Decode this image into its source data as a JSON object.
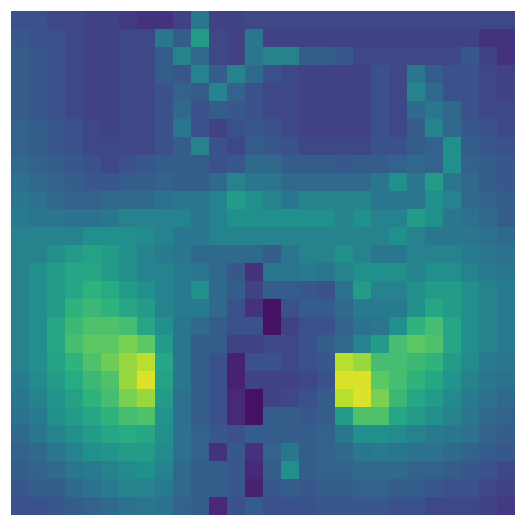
{
  "chart_data": {
    "type": "heatmap",
    "colormap": "viridis",
    "value_range": [
      0,
      1
    ],
    "axes_visible": false,
    "grid": false,
    "colorbar": false,
    "rows": 28,
    "cols": 28,
    "values": [
      [
        0.25,
        0.25,
        0.22,
        0.22,
        0.2,
        0.2,
        0.18,
        0.15,
        0.15,
        0.2,
        0.4,
        0.2,
        0.2,
        0.22,
        0.22,
        0.22,
        0.22,
        0.22,
        0.22,
        0.22,
        0.22,
        0.22,
        0.22,
        0.22,
        0.22,
        0.22,
        0.22,
        0.22
      ],
      [
        0.28,
        0.25,
        0.25,
        0.22,
        0.2,
        0.2,
        0.22,
        0.22,
        0.4,
        0.3,
        0.55,
        0.22,
        0.2,
        0.4,
        0.2,
        0.2,
        0.2,
        0.2,
        0.2,
        0.2,
        0.2,
        0.2,
        0.2,
        0.2,
        0.2,
        0.2,
        0.15,
        0.15
      ],
      [
        0.3,
        0.28,
        0.25,
        0.22,
        0.2,
        0.2,
        0.22,
        0.22,
        0.3,
        0.45,
        0.35,
        0.22,
        0.2,
        0.4,
        0.45,
        0.45,
        0.3,
        0.3,
        0.28,
        0.22,
        0.22,
        0.22,
        0.22,
        0.22,
        0.22,
        0.28,
        0.2,
        0.15
      ],
      [
        0.3,
        0.28,
        0.25,
        0.22,
        0.2,
        0.2,
        0.22,
        0.22,
        0.3,
        0.28,
        0.45,
        0.3,
        0.45,
        0.35,
        0.25,
        0.22,
        0.2,
        0.2,
        0.2,
        0.2,
        0.25,
        0.22,
        0.4,
        0.3,
        0.25,
        0.25,
        0.22,
        0.2
      ],
      [
        0.3,
        0.28,
        0.25,
        0.22,
        0.2,
        0.2,
        0.22,
        0.22,
        0.25,
        0.32,
        0.3,
        0.45,
        0.32,
        0.25,
        0.22,
        0.22,
        0.2,
        0.2,
        0.2,
        0.2,
        0.25,
        0.22,
        0.45,
        0.35,
        0.25,
        0.25,
        0.22,
        0.2
      ],
      [
        0.3,
        0.28,
        0.25,
        0.22,
        0.2,
        0.2,
        0.22,
        0.22,
        0.25,
        0.35,
        0.25,
        0.3,
        0.28,
        0.25,
        0.22,
        0.22,
        0.2,
        0.2,
        0.2,
        0.2,
        0.25,
        0.22,
        0.35,
        0.4,
        0.35,
        0.25,
        0.22,
        0.22
      ],
      [
        0.32,
        0.3,
        0.28,
        0.25,
        0.22,
        0.2,
        0.22,
        0.22,
        0.25,
        0.4,
        0.25,
        0.2,
        0.25,
        0.28,
        0.25,
        0.22,
        0.2,
        0.2,
        0.2,
        0.2,
        0.25,
        0.22,
        0.3,
        0.45,
        0.35,
        0.28,
        0.25,
        0.22
      ],
      [
        0.32,
        0.3,
        0.28,
        0.25,
        0.22,
        0.22,
        0.22,
        0.22,
        0.25,
        0.3,
        0.45,
        0.25,
        0.22,
        0.3,
        0.28,
        0.25,
        0.22,
        0.22,
        0.22,
        0.22,
        0.25,
        0.25,
        0.3,
        0.32,
        0.5,
        0.3,
        0.28,
        0.25
      ],
      [
        0.35,
        0.32,
        0.3,
        0.28,
        0.25,
        0.22,
        0.25,
        0.28,
        0.3,
        0.3,
        0.3,
        0.25,
        0.28,
        0.35,
        0.35,
        0.3,
        0.3,
        0.3,
        0.28,
        0.3,
        0.3,
        0.32,
        0.35,
        0.32,
        0.5,
        0.32,
        0.3,
        0.28
      ],
      [
        0.38,
        0.35,
        0.32,
        0.3,
        0.28,
        0.28,
        0.3,
        0.3,
        0.32,
        0.3,
        0.3,
        0.35,
        0.45,
        0.4,
        0.4,
        0.35,
        0.35,
        0.35,
        0.35,
        0.35,
        0.4,
        0.5,
        0.4,
        0.55,
        0.4,
        0.35,
        0.3,
        0.28
      ],
      [
        0.4,
        0.38,
        0.35,
        0.32,
        0.32,
        0.35,
        0.35,
        0.35,
        0.38,
        0.4,
        0.4,
        0.45,
        0.55,
        0.5,
        0.45,
        0.4,
        0.45,
        0.45,
        0.45,
        0.45,
        0.4,
        0.4,
        0.4,
        0.5,
        0.45,
        0.35,
        0.32,
        0.3
      ],
      [
        0.42,
        0.4,
        0.4,
        0.38,
        0.38,
        0.4,
        0.45,
        0.45,
        0.45,
        0.45,
        0.4,
        0.45,
        0.5,
        0.5,
        0.5,
        0.5,
        0.5,
        0.5,
        0.45,
        0.5,
        0.45,
        0.45,
        0.55,
        0.5,
        0.4,
        0.38,
        0.35,
        0.3
      ],
      [
        0.45,
        0.45,
        0.45,
        0.45,
        0.5,
        0.5,
        0.5,
        0.48,
        0.45,
        0.4,
        0.4,
        0.45,
        0.45,
        0.45,
        0.45,
        0.45,
        0.45,
        0.45,
        0.45,
        0.45,
        0.45,
        0.5,
        0.45,
        0.4,
        0.4,
        0.4,
        0.38,
        0.35
      ],
      [
        0.45,
        0.45,
        0.5,
        0.55,
        0.58,
        0.55,
        0.5,
        0.45,
        0.42,
        0.4,
        0.35,
        0.35,
        0.35,
        0.35,
        0.3,
        0.4,
        0.45,
        0.45,
        0.5,
        0.45,
        0.4,
        0.4,
        0.45,
        0.45,
        0.45,
        0.42,
        0.4,
        0.38
      ],
      [
        0.45,
        0.5,
        0.55,
        0.6,
        0.6,
        0.55,
        0.5,
        0.45,
        0.45,
        0.42,
        0.4,
        0.35,
        0.28,
        0.15,
        0.4,
        0.4,
        0.42,
        0.4,
        0.45,
        0.5,
        0.5,
        0.5,
        0.45,
        0.5,
        0.5,
        0.45,
        0.42,
        0.4
      ],
      [
        0.45,
        0.5,
        0.55,
        0.6,
        0.65,
        0.62,
        0.55,
        0.5,
        0.45,
        0.42,
        0.5,
        0.35,
        0.3,
        0.2,
        0.3,
        0.3,
        0.28,
        0.25,
        0.38,
        0.55,
        0.45,
        0.45,
        0.5,
        0.55,
        0.55,
        0.5,
        0.45,
        0.42
      ],
      [
        0.45,
        0.5,
        0.55,
        0.65,
        0.68,
        0.65,
        0.6,
        0.55,
        0.45,
        0.42,
        0.42,
        0.35,
        0.25,
        0.15,
        0.05,
        0.25,
        0.3,
        0.3,
        0.35,
        0.42,
        0.42,
        0.42,
        0.5,
        0.6,
        0.55,
        0.5,
        0.45,
        0.42
      ],
      [
        0.45,
        0.5,
        0.6,
        0.68,
        0.72,
        0.72,
        0.7,
        0.6,
        0.5,
        0.4,
        0.35,
        0.3,
        0.25,
        0.25,
        0.05,
        0.2,
        0.25,
        0.25,
        0.32,
        0.38,
        0.4,
        0.5,
        0.65,
        0.7,
        0.6,
        0.5,
        0.45,
        0.42
      ],
      [
        0.45,
        0.5,
        0.6,
        0.7,
        0.75,
        0.75,
        0.8,
        0.75,
        0.55,
        0.4,
        0.3,
        0.3,
        0.2,
        0.2,
        0.22,
        0.22,
        0.25,
        0.3,
        0.35,
        0.45,
        0.55,
        0.7,
        0.75,
        0.72,
        0.6,
        0.5,
        0.45,
        0.42
      ],
      [
        0.45,
        0.5,
        0.58,
        0.65,
        0.72,
        0.78,
        0.85,
        0.9,
        0.6,
        0.4,
        0.3,
        0.25,
        0.1,
        0.25,
        0.25,
        0.22,
        0.25,
        0.28,
        0.9,
        0.85,
        0.7,
        0.7,
        0.68,
        0.65,
        0.55,
        0.48,
        0.42,
        0.4
      ],
      [
        0.42,
        0.48,
        0.55,
        0.62,
        0.68,
        0.72,
        0.85,
        0.95,
        0.58,
        0.4,
        0.3,
        0.25,
        0.1,
        0.2,
        0.2,
        0.2,
        0.22,
        0.25,
        0.95,
        0.95,
        0.75,
        0.7,
        0.65,
        0.6,
        0.52,
        0.45,
        0.4,
        0.38
      ],
      [
        0.4,
        0.45,
        0.52,
        0.58,
        0.65,
        0.7,
        0.8,
        0.85,
        0.55,
        0.38,
        0.3,
        0.25,
        0.12,
        0.05,
        0.2,
        0.22,
        0.25,
        0.3,
        0.9,
        0.95,
        0.8,
        0.68,
        0.6,
        0.55,
        0.48,
        0.42,
        0.38,
        0.35
      ],
      [
        0.38,
        0.42,
        0.5,
        0.55,
        0.6,
        0.65,
        0.7,
        0.72,
        0.52,
        0.38,
        0.3,
        0.25,
        0.12,
        0.05,
        0.3,
        0.3,
        0.28,
        0.3,
        0.55,
        0.72,
        0.72,
        0.6,
        0.55,
        0.5,
        0.45,
        0.4,
        0.35,
        0.32
      ],
      [
        0.35,
        0.4,
        0.45,
        0.5,
        0.55,
        0.6,
        0.62,
        0.6,
        0.5,
        0.38,
        0.32,
        0.28,
        0.25,
        0.3,
        0.3,
        0.3,
        0.3,
        0.32,
        0.4,
        0.5,
        0.5,
        0.48,
        0.45,
        0.42,
        0.4,
        0.38,
        0.32,
        0.3
      ],
      [
        0.32,
        0.35,
        0.4,
        0.45,
        0.5,
        0.52,
        0.55,
        0.55,
        0.48,
        0.38,
        0.32,
        0.15,
        0.28,
        0.15,
        0.32,
        0.4,
        0.3,
        0.32,
        0.35,
        0.4,
        0.42,
        0.4,
        0.38,
        0.38,
        0.35,
        0.32,
        0.3,
        0.28
      ],
      [
        0.3,
        0.32,
        0.35,
        0.4,
        0.42,
        0.45,
        0.48,
        0.5,
        0.45,
        0.35,
        0.3,
        0.3,
        0.28,
        0.12,
        0.3,
        0.5,
        0.3,
        0.32,
        0.32,
        0.35,
        0.35,
        0.35,
        0.32,
        0.32,
        0.3,
        0.28,
        0.25,
        0.22
      ],
      [
        0.28,
        0.3,
        0.3,
        0.35,
        0.38,
        0.42,
        0.45,
        0.45,
        0.42,
        0.35,
        0.3,
        0.3,
        0.28,
        0.1,
        0.28,
        0.3,
        0.28,
        0.3,
        0.3,
        0.32,
        0.32,
        0.3,
        0.3,
        0.28,
        0.25,
        0.25,
        0.22,
        0.2
      ],
      [
        0.25,
        0.25,
        0.28,
        0.3,
        0.32,
        0.35,
        0.38,
        0.4,
        0.38,
        0.32,
        0.3,
        0.12,
        0.25,
        0.3,
        0.25,
        0.25,
        0.25,
        0.28,
        0.28,
        0.28,
        0.28,
        0.25,
        0.25,
        0.22,
        0.22,
        0.22,
        0.2,
        0.18
      ]
    ]
  }
}
